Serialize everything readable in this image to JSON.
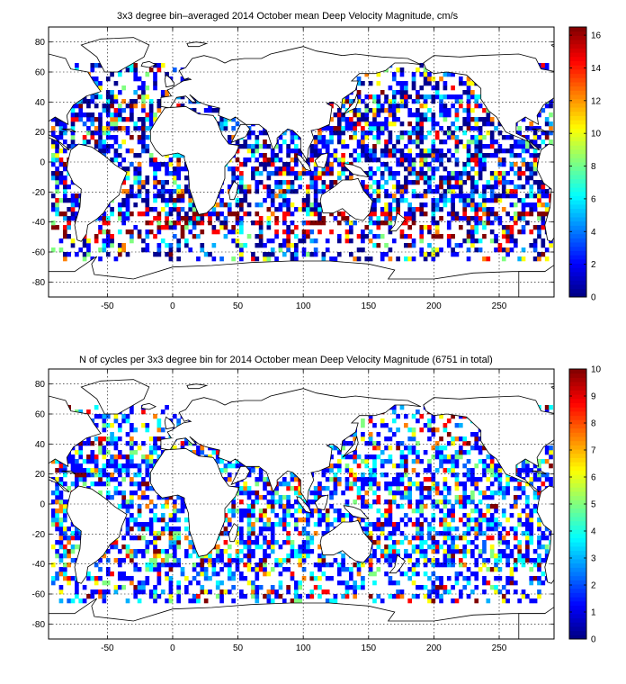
{
  "panels": [
    {
      "title": "3x3 degree bin–averaged 2014 October mean Deep Velocity Magnitude, cm/s",
      "x_ticks": [
        -50,
        0,
        50,
        100,
        150,
        200,
        250
      ],
      "y_ticks": [
        80,
        60,
        40,
        20,
        0,
        -20,
        -40,
        -60,
        -80
      ],
      "xlim": [
        -95,
        292
      ],
      "ylim": [
        -90,
        90
      ],
      "colorbar": {
        "min": 0,
        "max": 16.5,
        "ticks": [
          0,
          2,
          4,
          6,
          8,
          10,
          12,
          14,
          16
        ]
      },
      "grid": true
    },
    {
      "title": "N of cycles per 3x3 degree bin for 2014 October mean Deep Velocity Magnitude (6751 in total)",
      "x_ticks": [
        -50,
        0,
        50,
        100,
        150,
        200,
        250
      ],
      "y_ticks": [
        80,
        60,
        40,
        20,
        0,
        -20,
        -40,
        -60,
        -80
      ],
      "xlim": [
        -95,
        292
      ],
      "ylim": [
        -90,
        90
      ],
      "colorbar": {
        "min": 0,
        "max": 10,
        "ticks": [
          0,
          1,
          2,
          3,
          4,
          5,
          6,
          7,
          8,
          9,
          10
        ]
      },
      "grid": true
    }
  ]
}
